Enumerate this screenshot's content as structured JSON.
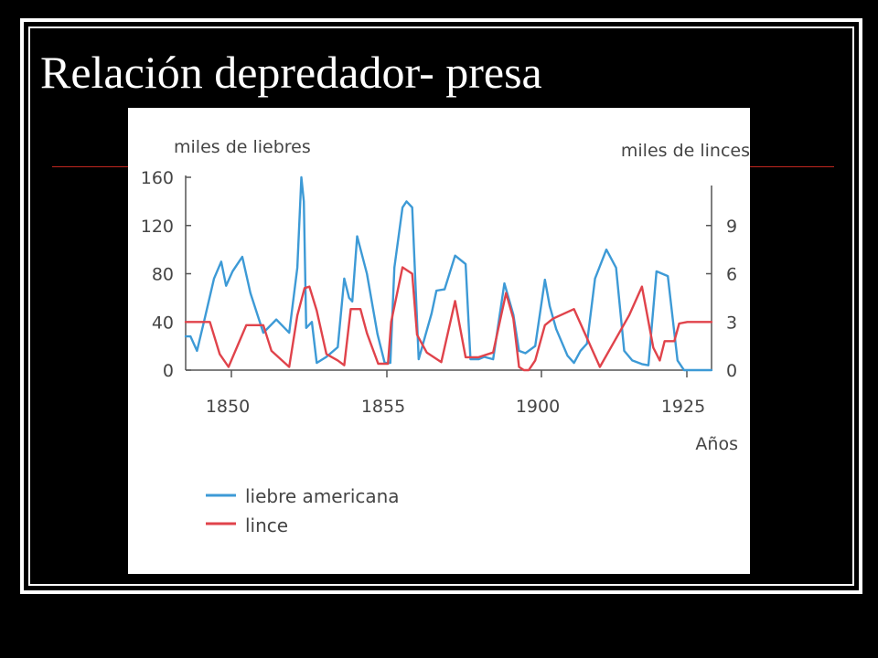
{
  "slide": {
    "title": "Relación depredador- presa"
  },
  "colors": {
    "background": "#000000",
    "frame": "#ffffff",
    "title_rule": "#c0271f",
    "hare_line": "#3d9ad6",
    "lynx_line": "#e0434b",
    "axis": "#555555"
  },
  "chart_data": {
    "type": "line",
    "ylabel": "miles de liebres",
    "y2label": "miles de linces",
    "xlabel": "Años",
    "ylim": [
      0,
      160
    ],
    "y2lim": [
      0,
      12
    ],
    "yticks": [
      "0",
      "40",
      "80",
      "120",
      "160"
    ],
    "y2ticks": [
      "0",
      "3",
      "6",
      "9"
    ],
    "xticks": [
      "1850",
      "1855",
      "1900",
      "1925"
    ],
    "grid": false,
    "legend_position": "bottom-left",
    "series": [
      {
        "name": "liebre americana",
        "axis": "left",
        "color": "#3d9ad6",
        "x": [
          0,
          0.6,
          1.4,
          2.4,
          3.5,
          4.4,
          5,
          5.8,
          7,
          8,
          9.6,
          11.2,
          12.8,
          13.8,
          14.3,
          14.6,
          14.9,
          15.6,
          16.2,
          17.4,
          18.8,
          19.6,
          20.2,
          20.6,
          21.2,
          22.4,
          23.7,
          24.6,
          25.3,
          25.8,
          26.8,
          27.3,
          28,
          28.8,
          29.6,
          30.4,
          31,
          32,
          33.3,
          34.6,
          35.2,
          36.2,
          36.9,
          38,
          39.4,
          40.5,
          41.2,
          42,
          43.2,
          44.4,
          45,
          45.8,
          47.2,
          48,
          48.8,
          49.6,
          50.6,
          52,
          53.2,
          54.2,
          55.2,
          56.4,
          57.2,
          58.2,
          59.6,
          60.8,
          61.6,
          62.4,
          63,
          63.8,
          64.4,
          65
        ],
        "y": [
          28,
          28,
          16,
          44,
          76,
          90,
          70,
          82,
          94,
          64,
          31,
          42,
          31,
          85,
          160,
          140,
          35,
          40,
          6,
          11,
          19,
          76,
          60,
          57,
          111,
          80,
          30,
          6,
          6,
          85,
          135,
          140,
          135,
          9,
          28,
          47,
          66,
          67,
          95,
          88,
          9,
          9,
          11,
          9,
          72,
          46,
          16,
          14,
          20,
          75,
          53,
          34,
          12,
          6,
          16,
          22,
          76,
          100,
          85,
          16,
          8,
          5,
          4,
          82,
          78,
          8,
          0,
          0,
          0,
          0,
          0,
          0
        ]
      },
      {
        "name": "lince",
        "axis": "right",
        "color": "#e0434b",
        "x": [
          0,
          1.8,
          3,
          4.2,
          5.3,
          6.4,
          7.5,
          8.6,
          9.6,
          10.6,
          12.8,
          13.8,
          14.7,
          15.3,
          16.2,
          17.4,
          18.8,
          19.6,
          20.4,
          21.6,
          22.4,
          23.8,
          25,
          25.4,
          26.8,
          28,
          28.6,
          29.8,
          31.6,
          33.3,
          34.6,
          36.2,
          38,
          39.6,
          40.5,
          41.2,
          41.8,
          42.4,
          43.2,
          44.4,
          45.4,
          48,
          51.2,
          54.8,
          56.4,
          57.8,
          58.6,
          59.2,
          60.4,
          61,
          62,
          64,
          65
        ],
        "y": [
          3,
          3,
          3,
          1,
          0.2,
          1.5,
          2.8,
          2.8,
          2.8,
          1.2,
          0.2,
          3.4,
          5.1,
          5.2,
          3.7,
          1,
          0.6,
          0.3,
          3.8,
          3.8,
          2.3,
          0.4,
          0.4,
          3,
          6.4,
          6,
          2.2,
          1.1,
          0.5,
          4.3,
          0.8,
          0.8,
          1.1,
          4.8,
          3.2,
          0.2,
          0,
          0,
          0.6,
          2.8,
          3.2,
          3.8,
          0.2,
          3.4,
          5.2,
          1.4,
          0.6,
          1.8,
          1.8,
          2.9,
          3,
          3,
          3
        ]
      }
    ]
  }
}
